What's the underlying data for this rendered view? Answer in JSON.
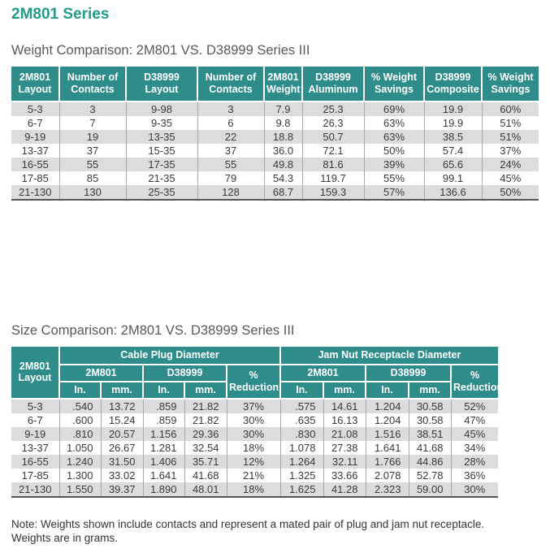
{
  "page": {
    "title": "2M801 Series"
  },
  "colors": {
    "title_teal": "#219b8c",
    "header_teal": "#2e8c8a",
    "row_alt": "#dbdcdd",
    "divider_gray": "#a7a9ac"
  },
  "weight_table": {
    "title": "Weight Comparison: 2M801 VS. D38999 Series III",
    "headers": [
      "2M801 Layout",
      "Number of Contacts",
      "D38999 Layout",
      "Number of Contacts",
      "2M801 Weight",
      "D38999 Aluminum",
      "% Weight Savings",
      "D38999 Composite",
      "% Weight Savings"
    ],
    "rows": [
      [
        "5-3",
        "3",
        "9-98",
        "3",
        "7.9",
        "25.3",
        "69%",
        "19.9",
        "60%"
      ],
      [
        "6-7",
        "7",
        "9-35",
        "6",
        "9.8",
        "26.3",
        "63%",
        "19.9",
        "51%"
      ],
      [
        "9-19",
        "19",
        "13-35",
        "22",
        "18.8",
        "50.7",
        "63%",
        "38.5",
        "51%"
      ],
      [
        "13-37",
        "37",
        "15-35",
        "37",
        "36.0",
        "72.1",
        "50%",
        "57.4",
        "37%"
      ],
      [
        "16-55",
        "55",
        "17-35",
        "55",
        "49.8",
        "81.6",
        "39%",
        "65.6",
        "24%"
      ],
      [
        "17-85",
        "85",
        "21-35",
        "79",
        "54.3",
        "119.7",
        "55%",
        "99.1",
        "45%"
      ],
      [
        "21-130",
        "130",
        "25-35",
        "128",
        "68.7",
        "159.3",
        "57%",
        "136.6",
        "50%"
      ]
    ]
  },
  "size_table": {
    "title": "Size Comparison: 2M801 VS. D38999 Series III",
    "layout_header": "2M801 Layout",
    "group_headers": [
      "Cable Plug Diameter",
      "Jam Nut Receptacle Diameter"
    ],
    "sub_headers": [
      "2M801",
      "D38999",
      "% Reduction"
    ],
    "unit_headers": [
      "In.",
      "mm."
    ],
    "rows": [
      [
        "5-3",
        ".540",
        "13.72",
        ".859",
        "21.82",
        "37%",
        ".575",
        "14.61",
        "1.204",
        "30.58",
        "52%"
      ],
      [
        "6-7",
        ".600",
        "15.24",
        ".859",
        "21.82",
        "30%",
        ".635",
        "16.13",
        "1.204",
        "30.58",
        "47%"
      ],
      [
        "9-19",
        ".810",
        "20.57",
        "1.156",
        "29.36",
        "30%",
        ".830",
        "21.08",
        "1.516",
        "38.51",
        "45%"
      ],
      [
        "13-37",
        "1.050",
        "26.67",
        "1.281",
        "32.54",
        "18%",
        "1.078",
        "27.38",
        "1.641",
        "41.68",
        "34%"
      ],
      [
        "16-55",
        "1.240",
        "31.50",
        "1.406",
        "35.71",
        "12%",
        "1.264",
        "32.11",
        "1.766",
        "44.86",
        "28%"
      ],
      [
        "17-85",
        "1.300",
        "33.02",
        "1.641",
        "41.68",
        "21%",
        "1.325",
        "33.66",
        "2.078",
        "52.78",
        "36%"
      ],
      [
        "21-130",
        "1.550",
        "39.37",
        "1.890",
        "48.01",
        "18%",
        "1.625",
        "41.28",
        "2.323",
        "59.00",
        "30%"
      ]
    ]
  },
  "note": {
    "line1": "Note: Weights shown include contacts and represent a mated pair of plug and jam nut receptacle.",
    "line2": "Weights are in grams."
  }
}
